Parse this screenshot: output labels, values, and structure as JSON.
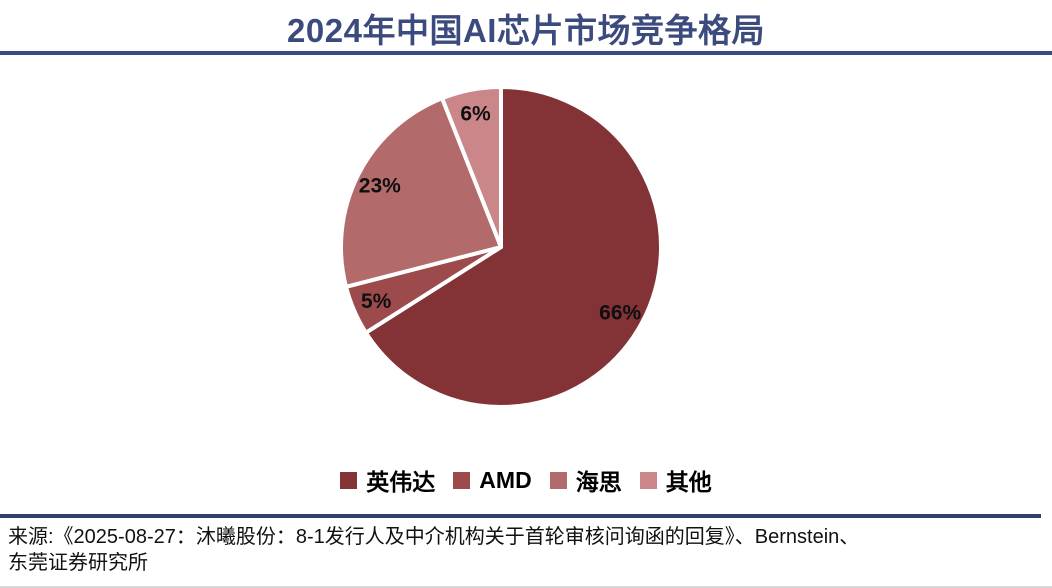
{
  "header": {
    "title": "2024年中国AI芯片市场竞争格局"
  },
  "chart_data": {
    "type": "pie",
    "title": "2024年中国AI芯片市场竞争格局",
    "labels": [
      "英伟达",
      "AMD",
      "海思",
      "其他"
    ],
    "keys": [
      "nvidia",
      "amd",
      "hisilicon",
      "others"
    ],
    "values": [
      66,
      5,
      23,
      6
    ],
    "value_labels": [
      "66%",
      "5%",
      "23%",
      "6%"
    ],
    "colors": [
      "#833336",
      "#9C4A4B",
      "#B26A6B",
      "#CB868A"
    ],
    "slice_border_color": "#FFFFFF",
    "start_angle_deg": 0,
    "direction": "clockwise",
    "legend_position": "bottom",
    "legend_entries": [
      "英伟达",
      "AMD",
      "海思",
      "其他"
    ]
  },
  "footer": {
    "source_line1": "来源:《2025-08-27：沐曦股份：8-1发行人及中介机构关于首轮审核问询函的回复》、Bernstein、",
    "source_line2": "东莞证券研究所"
  },
  "colors": {
    "accent_navy": "#3B4A7D",
    "footer_rule_navy": "#2F3F6E",
    "label_text": "#0F0F0F"
  }
}
